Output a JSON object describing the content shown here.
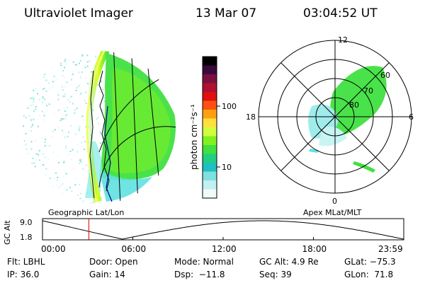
{
  "header": {
    "instrument": "Ultraviolet Imager",
    "date": "13 Mar 07",
    "time": "03:04:52 UT"
  },
  "left_panel": {
    "caption": "Geographic Lat/Lon"
  },
  "right_panel": {
    "caption": "Apex MLat/MLT",
    "mlt_labels": [
      "12",
      "18",
      "6",
      "0"
    ],
    "mlat_labels": [
      "60",
      "70",
      "80"
    ]
  },
  "colorbar": {
    "unit_label": "photon cm⁻²s⁻¹",
    "tick_labels": [
      "100",
      "10"
    ],
    "colors": [
      "#000000",
      "#3a0a3a",
      "#7a1040",
      "#b01030",
      "#e01010",
      "#ff5010",
      "#ffa010",
      "#ffe040",
      "#d0ff40",
      "#80f020",
      "#40e040",
      "#20d080",
      "#20c0c0",
      "#80e0e0",
      "#c0f0f0",
      "#f0fafa"
    ]
  },
  "timeline": {
    "axis_label": "GC Alt",
    "y_ticks": [
      "9.0",
      "1.8"
    ],
    "x_ticks": [
      "00:00",
      "06:00",
      "12:00",
      "18:00",
      "23:59"
    ],
    "marker_time_hours": 3.08
  },
  "info": {
    "filter": "Flt: LBHL",
    "door": "Door: Open",
    "mode": "Mode: Normal",
    "gc_alt": "GC Alt: 4.9 Re",
    "glat": "GLat: −75.3",
    "ip": "IP: 36.0",
    "gain": "Gain: 14",
    "dsp": "Dsp:  −11.8",
    "seq": "Seq: 39",
    "glon": "GLon:  71.8"
  },
  "colors": {
    "aurora_green": "#40e040",
    "aurora_yellow": "#e0ff20",
    "cyan": "#60e0e0",
    "marker_red": "#e00000",
    "orbit_navy": "#000080"
  }
}
